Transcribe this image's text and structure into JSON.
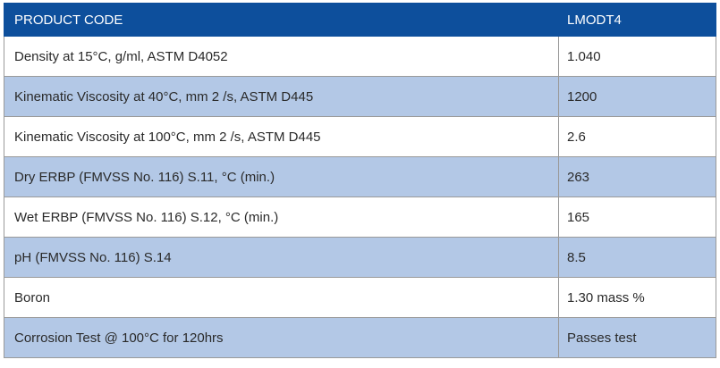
{
  "colors": {
    "header_bg": "#0d4f9c",
    "alt_row_bg": "#b3c8e6"
  },
  "header": {
    "label": "PRODUCT CODE",
    "value": "LMODT4"
  },
  "rows": [
    {
      "label": "Density at 15°C, g/ml, ASTM D4052",
      "value": "1.040"
    },
    {
      "label": "Kinematic Viscosity at 40°C, mm 2 /s, ASTM D445",
      "value": "1200"
    },
    {
      "label": "Kinematic Viscosity at 100°C, mm 2 /s, ASTM D445",
      "value": "2.6"
    },
    {
      "label": "Dry ERBP (FMVSS No. 116) S.11, °C (min.)",
      "value": "263"
    },
    {
      "label": "Wet ERBP (FMVSS No. 116) S.12, °C (min.)",
      "value": "165"
    },
    {
      "label": "pH (FMVSS No. 116) S.14",
      "value": "8.5"
    },
    {
      "label": "Boron",
      "value": "1.30 mass %"
    },
    {
      "label": "Corrosion Test @ 100°C for 120hrs",
      "value": "Passes test"
    }
  ]
}
